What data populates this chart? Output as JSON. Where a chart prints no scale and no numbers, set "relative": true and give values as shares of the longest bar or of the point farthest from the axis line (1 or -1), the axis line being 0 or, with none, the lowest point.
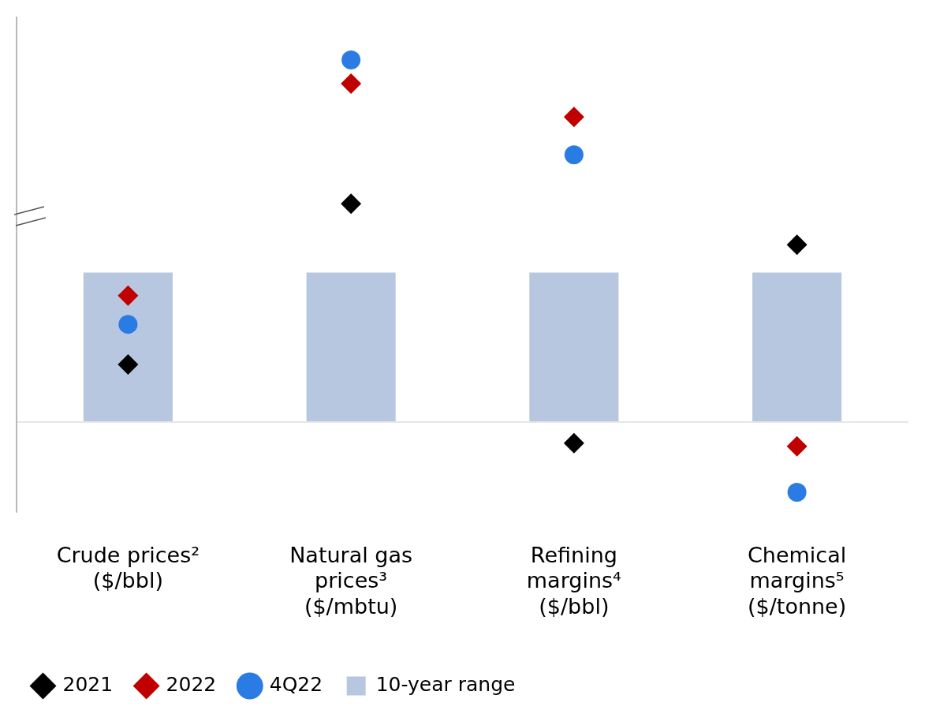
{
  "chart_data": {
    "type": "scatter",
    "relative": true,
    "categories": [
      "Crude prices² ($/bbl)",
      "Natural gas prices³ ($/mbtu)",
      "Refining margins⁴ ($/bbl)",
      "Chemical margins⁵ ($/tonne)"
    ],
    "series": [
      {
        "name": "10-year range",
        "type": "bar",
        "color": "#b8c7e0",
        "values": [
          0.413,
          0.413,
          0.413,
          0.413
        ]
      },
      {
        "name": "2021",
        "marker": "diamond",
        "color": "#000000",
        "values": [
          0.159,
          0.603,
          -0.058,
          0.49
        ]
      },
      {
        "name": "2022",
        "marker": "diamond",
        "color": "#c00000",
        "values": [
          0.349,
          0.935,
          0.843,
          -0.067
        ]
      },
      {
        "name": "4Q22",
        "marker": "circle",
        "color": "#2a7be4",
        "values": [
          0.27,
          1,
          0.738,
          -0.194
        ]
      }
    ],
    "legend": "bottom left",
    "grid": false
  }
}
